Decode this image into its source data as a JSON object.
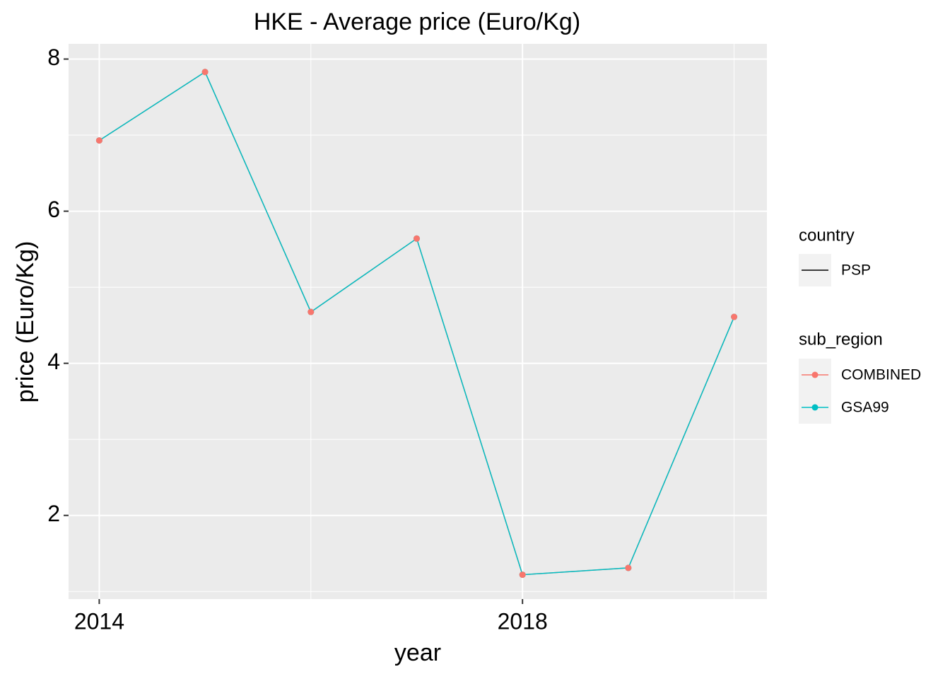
{
  "chart_data": {
    "type": "line",
    "title": "HKE - Average price (Euro/Kg)",
    "x_label": "year",
    "y_label": "price (Euro/Kg)",
    "x": [
      2014,
      2015,
      2016,
      2017,
      2018,
      2019,
      2020
    ],
    "series": [
      {
        "name": "COMBINED",
        "color": "#F8766D",
        "values": [
          6.93,
          7.83,
          4.675,
          5.64,
          1.22,
          1.31,
          4.61
        ]
      },
      {
        "name": "GSA99",
        "color": "#00BFC4",
        "values": [
          6.93,
          7.83,
          4.675,
          5.64,
          1.22,
          1.31,
          4.61
        ]
      }
    ],
    "legend_title": "sub_region",
    "country_legend": {
      "title": "country",
      "entries": [
        "PSP"
      ],
      "color": "#000000"
    },
    "xlim": [
      2013.71,
      2020.31
    ],
    "xticks": [
      2014,
      2018
    ],
    "x_minor_grid": [
      2016,
      2020
    ],
    "ylim": [
      0.9,
      8.2
    ],
    "yticks": [
      2,
      4,
      6,
      8
    ],
    "y_minor_grid": [
      1,
      3,
      5,
      7
    ],
    "grid": true
  }
}
